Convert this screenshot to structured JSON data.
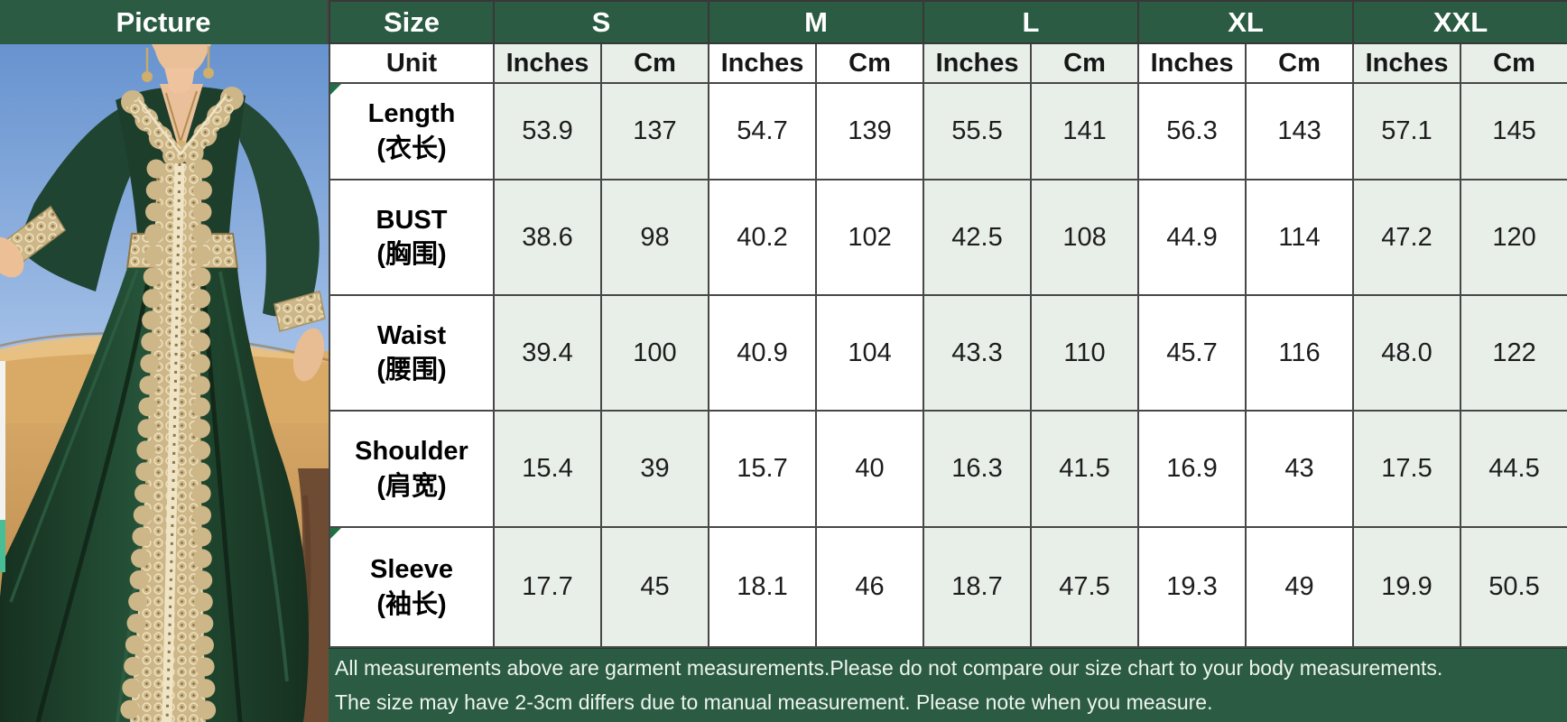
{
  "header": {
    "picture": "Picture",
    "size": "Size",
    "unit": "Unit",
    "sizes": [
      "S",
      "M",
      "L",
      "XL",
      "XXL"
    ],
    "unit_cols": [
      "Inches",
      "Cm"
    ]
  },
  "rows": [
    {
      "label_en": "Length",
      "label_zh": "(衣长)",
      "corner_mark": true,
      "values": [
        [
          "53.9",
          "137"
        ],
        [
          "54.7",
          "139"
        ],
        [
          "55.5",
          "141"
        ],
        [
          "56.3",
          "143"
        ],
        [
          "57.1",
          "145"
        ]
      ]
    },
    {
      "label_en": "BUST",
      "label_zh": "(胸围)",
      "corner_mark": false,
      "values": [
        [
          "38.6",
          "98"
        ],
        [
          "40.2",
          "102"
        ],
        [
          "42.5",
          "108"
        ],
        [
          "44.9",
          "114"
        ],
        [
          "47.2",
          "120"
        ]
      ]
    },
    {
      "label_en": "Waist",
      "label_zh": "(腰围)",
      "corner_mark": false,
      "values": [
        [
          "39.4",
          "100"
        ],
        [
          "40.9",
          "104"
        ],
        [
          "43.3",
          "110"
        ],
        [
          "45.7",
          "116"
        ],
        [
          "48.0",
          "122"
        ]
      ]
    },
    {
      "label_en": "Shoulder",
      "label_zh": "(肩宽)",
      "corner_mark": false,
      "values": [
        [
          "15.4",
          "39"
        ],
        [
          "15.7",
          "40"
        ],
        [
          "16.3",
          "41.5"
        ],
        [
          "16.9",
          "43"
        ],
        [
          "17.5",
          "44.5"
        ]
      ]
    },
    {
      "label_en": "Sleeve",
      "label_zh": "(袖长)",
      "corner_mark": true,
      "values": [
        [
          "17.7",
          "45"
        ],
        [
          "18.1",
          "46"
        ],
        [
          "18.7",
          "47.5"
        ],
        [
          "19.3",
          "49"
        ],
        [
          "19.9",
          "50.5"
        ]
      ]
    }
  ],
  "footer": {
    "line1": "All measurements above are garment measurements.Please do not compare our size chart to your body measurements.",
    "line2": "The size may have 2-3cm differs due to manual measurement. Please note when you measure."
  },
  "colors": {
    "header_green": "#2b5b43",
    "column_tint": "#e8efe9",
    "border": "#474747",
    "dress_green": "#1e3e2c",
    "lace_gold": "#cdb687",
    "sky_blue": "#6f9cd6",
    "sand": "#cf9d5c"
  },
  "photo": {
    "subject": "model wearing dark green kaftan dress with gold lace trim in desert"
  },
  "chart_data": {
    "type": "table",
    "title": "Garment size chart",
    "columns": [
      "Size / Unit",
      "S Inches",
      "S Cm",
      "M Inches",
      "M Cm",
      "L Inches",
      "L Cm",
      "XL Inches",
      "XL Cm",
      "XXL Inches",
      "XXL Cm"
    ],
    "rows": [
      [
        "Length (衣长)",
        53.9,
        137,
        54.7,
        139,
        55.5,
        141,
        56.3,
        143,
        57.1,
        145
      ],
      [
        "BUST (胸围)",
        38.6,
        98,
        40.2,
        102,
        42.5,
        108,
        44.9,
        114,
        47.2,
        120
      ],
      [
        "Waist (腰围)",
        39.4,
        100,
        40.9,
        104,
        43.3,
        110,
        45.7,
        116,
        48.0,
        122
      ],
      [
        "Shoulder (肩宽)",
        15.4,
        39,
        15.7,
        40,
        16.3,
        41.5,
        16.9,
        43,
        17.5,
        44.5
      ],
      [
        "Sleeve (袖长)",
        17.7,
        45,
        18.1,
        46,
        18.7,
        47.5,
        19.3,
        49,
        19.9,
        50.5
      ]
    ],
    "notes": [
      "All measurements above are garment measurements.Please do not compare our size chart to your body measurements.",
      "The size may have 2-3cm differs due to manual measurement. Please note when you measure."
    ]
  }
}
